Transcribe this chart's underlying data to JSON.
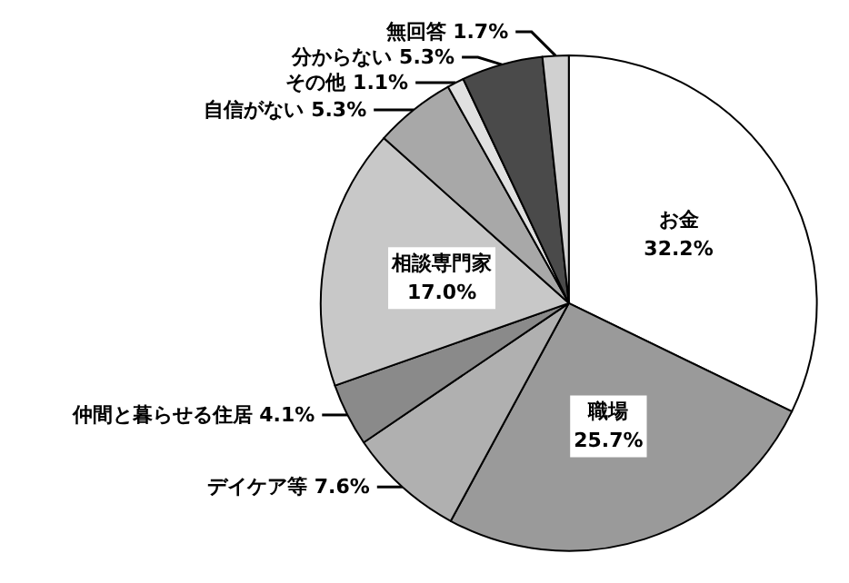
{
  "chart_data": {
    "type": "pie",
    "categories": [
      "お金",
      "職場",
      "デイケア等",
      "仲間と暮らせる住居",
      "相談専門家",
      "自信がない",
      "その他",
      "分からない",
      "無回答"
    ],
    "values": [
      32.2,
      25.7,
      7.6,
      4.1,
      17.0,
      5.3,
      1.1,
      5.3,
      1.7
    ],
    "value_labels": [
      "32.2%",
      "25.7%",
      "7.6%",
      "4.1%",
      "17.0%",
      "5.3%",
      "1.1%",
      "5.3%",
      "1.7%"
    ],
    "colors": [
      "#ffffff",
      "#9a9a9a",
      "#b0b0b0",
      "#8a8a8a",
      "#c8c8c8",
      "#a8a8a8",
      "#e0e0e0",
      "#4a4a4a",
      "#d0d0d0"
    ]
  }
}
